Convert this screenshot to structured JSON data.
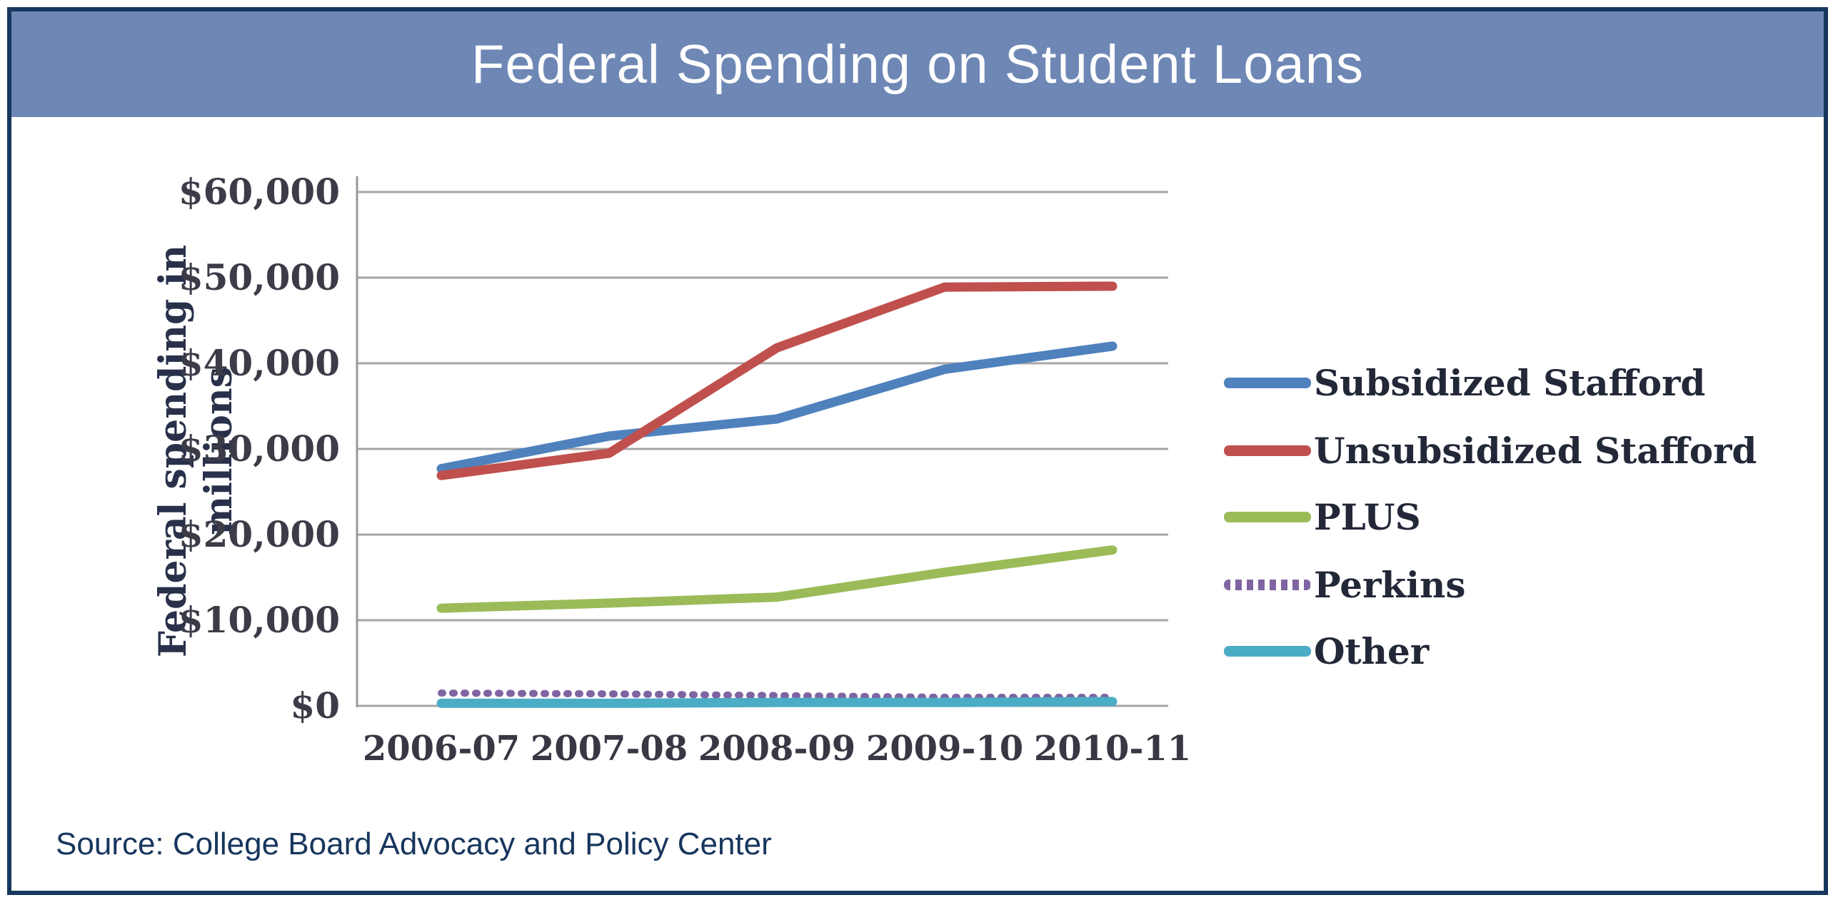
{
  "header": {
    "title": "Federal Spending on Student Loans"
  },
  "source_note": "Source: College Board Advocacy and Policy Center",
  "colors": {
    "header_bg": "#6e87b5",
    "card_border": "#17375d",
    "gridline": "#a6a6a6",
    "axis_line": "#9a9a9a",
    "tick_text": "#3c3c48",
    "legend_text": "#232838",
    "source_text": "#17365d",
    "title_text": "#ffffff"
  },
  "chart_data": {
    "type": "line",
    "title": "Federal Spending on Student Loans",
    "xlabel": "",
    "ylabel": "Federal spending in millions",
    "categories": [
      "2006-07",
      "2007-08",
      "2008-09",
      "2009-10",
      "2010-11"
    ],
    "y_tick_labels": [
      "$60,000",
      "$50,000",
      "$40,000",
      "$30,000",
      "$20,000",
      "$10,000",
      "$0"
    ],
    "ylim": [
      0,
      60000
    ],
    "y_tick_step": 10000,
    "grid": "horizontal-only",
    "legend_position": "right",
    "series": [
      {
        "name": "Subsidized Stafford",
        "color": "#4f81bd",
        "style": "solid",
        "values": [
          27700,
          31500,
          33500,
          39300,
          42000
        ]
      },
      {
        "name": "Unsubsidized Stafford",
        "color": "#c0504d",
        "style": "solid",
        "values": [
          26900,
          29500,
          41800,
          48900,
          49000
        ]
      },
      {
        "name": "PLUS",
        "color": "#9bbb59",
        "style": "solid",
        "values": [
          11400,
          12000,
          12700,
          15600,
          18200
        ]
      },
      {
        "name": "Perkins",
        "color": "#8064a2",
        "style": "dotted",
        "values": [
          1500,
          1400,
          1200,
          1000,
          1000
        ]
      },
      {
        "name": "Other",
        "color": "#4bacc6",
        "style": "solid",
        "values": [
          300,
          300,
          400,
          400,
          500
        ]
      }
    ]
  }
}
